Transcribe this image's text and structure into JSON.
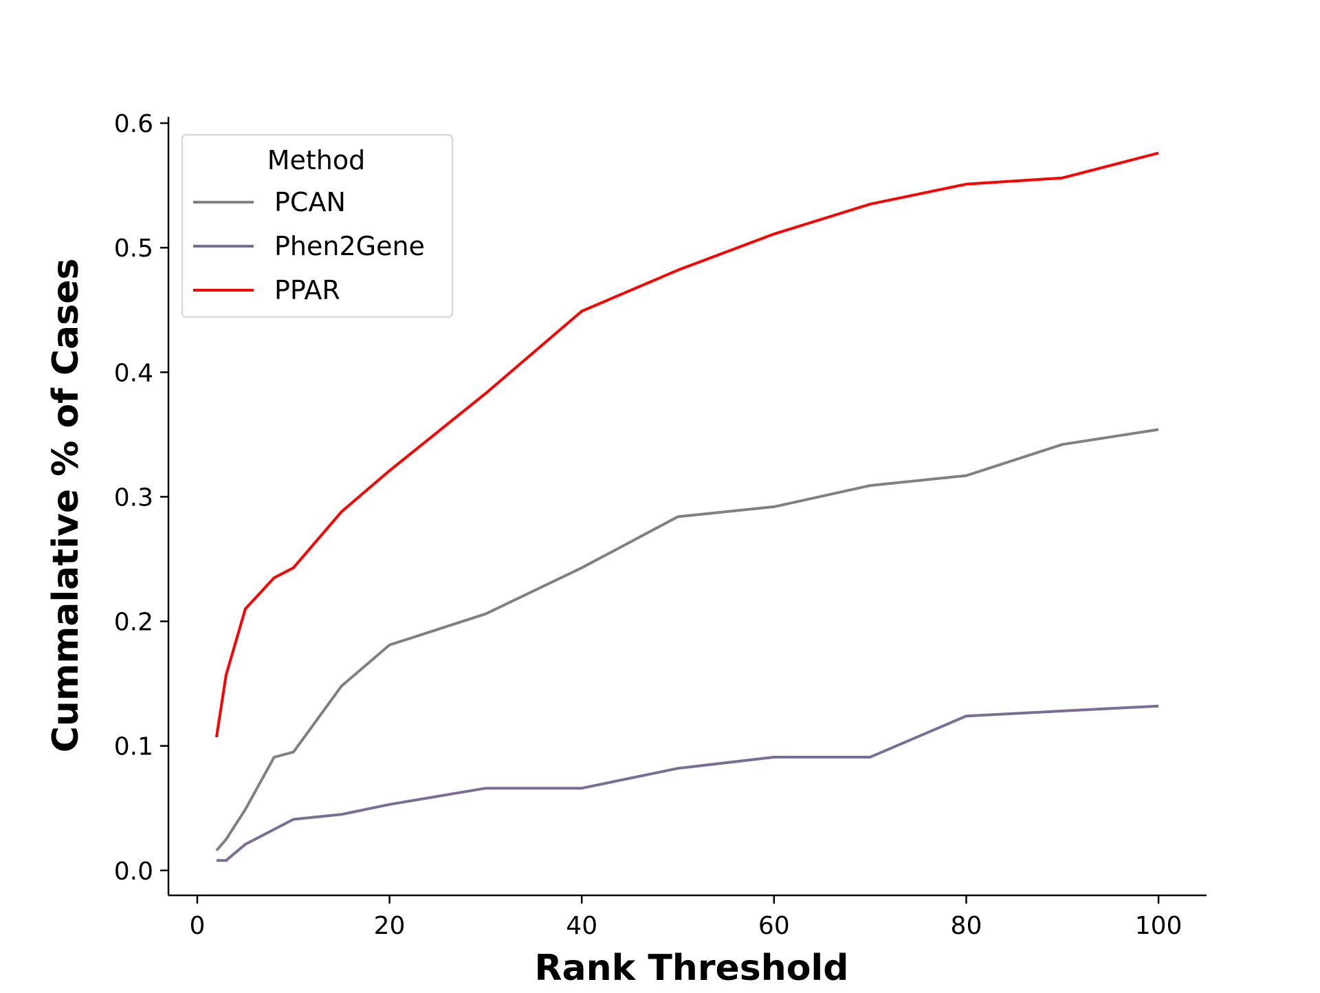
{
  "chart_data": {
    "type": "line",
    "title": "",
    "xlabel": "Rank Threshold",
    "ylabel": "Cummalative % of Cases",
    "xlim": [
      -3,
      105
    ],
    "ylim": [
      -0.02,
      0.605
    ],
    "x_ticks": [
      0,
      20,
      40,
      60,
      80,
      100
    ],
    "x_tick_labels": [
      "0",
      "20",
      "40",
      "60",
      "80",
      "100"
    ],
    "y_ticks": [
      0.0,
      0.1,
      0.2,
      0.3,
      0.4,
      0.5,
      0.6
    ],
    "y_tick_labels": [
      "0.0",
      "0.1",
      "0.2",
      "0.3",
      "0.4",
      "0.5",
      "0.6"
    ],
    "grid": false,
    "legend": {
      "title": "Method",
      "position": "upper-left"
    },
    "x": [
      2,
      3,
      5,
      8,
      10,
      15,
      20,
      30,
      40,
      50,
      60,
      70,
      80,
      90,
      100
    ],
    "series": [
      {
        "name": "PCAN",
        "color": "#808080",
        "values": [
          0.016,
          0.025,
          0.049,
          0.091,
          0.095,
          0.148,
          0.181,
          0.206,
          0.243,
          0.284,
          0.292,
          0.309,
          0.317,
          0.342,
          0.354
        ]
      },
      {
        "name": "Phen2Gene",
        "color": "#7a6e96",
        "values": [
          0.008,
          0.008,
          0.021,
          0.033,
          0.041,
          0.045,
          0.053,
          0.066,
          0.066,
          0.082,
          0.091,
          0.091,
          0.124,
          0.128,
          0.132
        ]
      },
      {
        "name": "PPAR",
        "color": "#ff0000",
        "values": [
          0.107,
          0.157,
          0.21,
          0.235,
          0.243,
          0.288,
          0.321,
          0.383,
          0.449,
          0.482,
          0.511,
          0.535,
          0.551,
          0.556,
          0.576
        ]
      }
    ]
  }
}
